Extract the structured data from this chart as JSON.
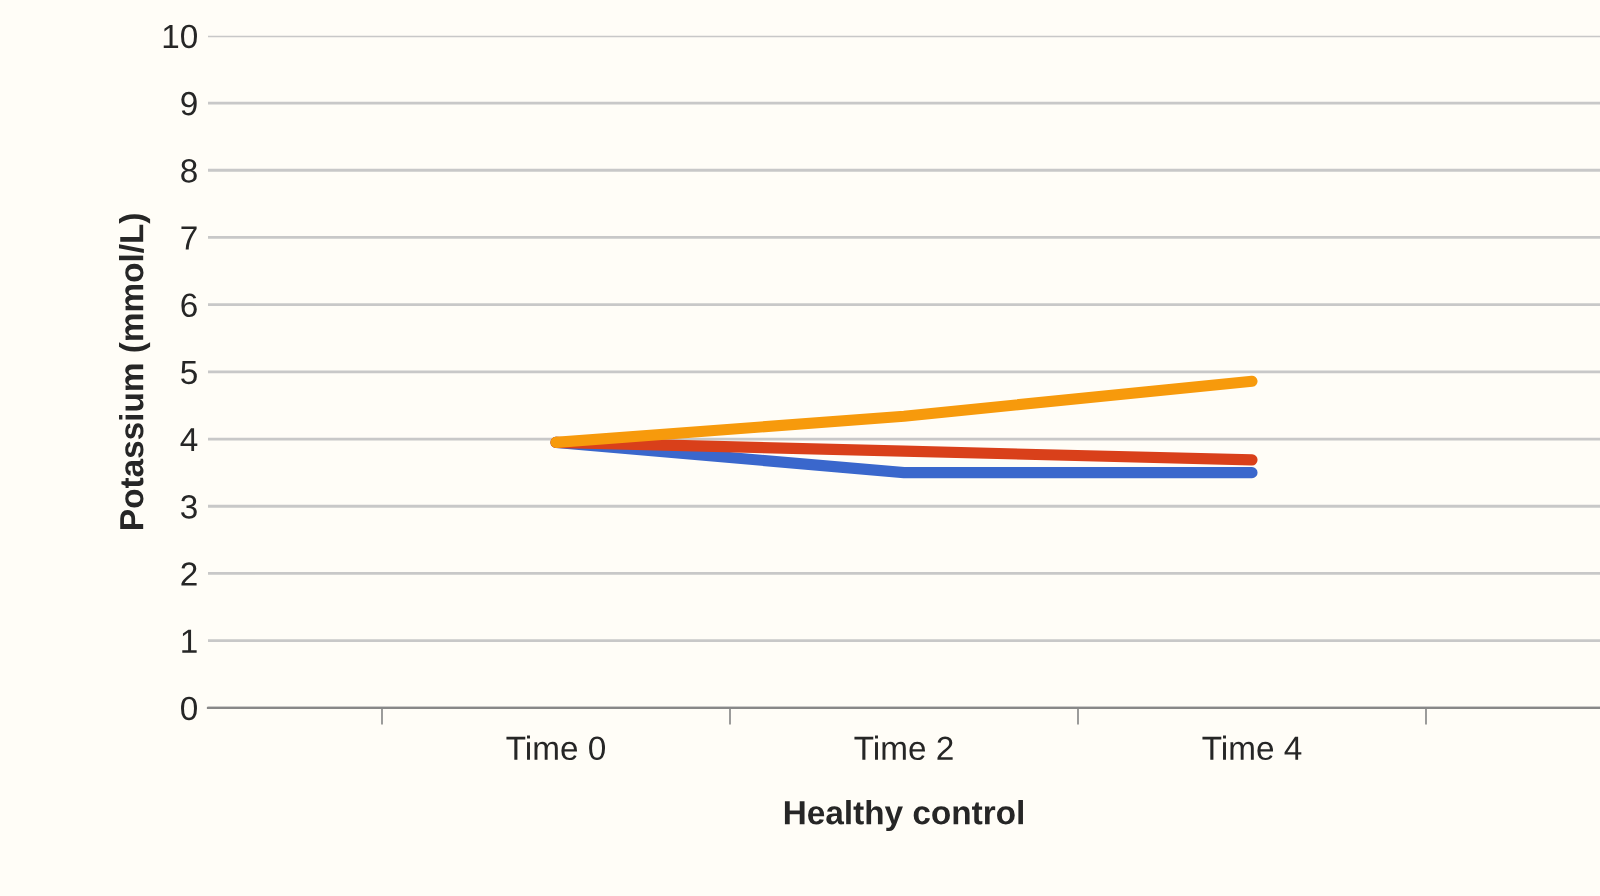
{
  "chart_data": {
    "type": "line",
    "xlabel": "Healthy control",
    "ylabel": "Potassium (mmol/L)",
    "categories": [
      "Time 0",
      "Time 2",
      "Time 4"
    ],
    "series": [
      {
        "color": "#3a67cc",
        "values": [
          3.95,
          3.5,
          3.5
        ]
      },
      {
        "color": "#d9401a",
        "values": [
          3.95,
          3.82,
          3.69
        ]
      },
      {
        "color": "#f79a0c",
        "values": [
          3.95,
          4.34,
          4.86
        ]
      }
    ],
    "ylim": [
      0,
      10
    ],
    "yticks": [
      0,
      1,
      2,
      3,
      4,
      5,
      6,
      7,
      8,
      9,
      10
    ],
    "grid": "y",
    "line_style": "solid",
    "marker": "none"
  }
}
